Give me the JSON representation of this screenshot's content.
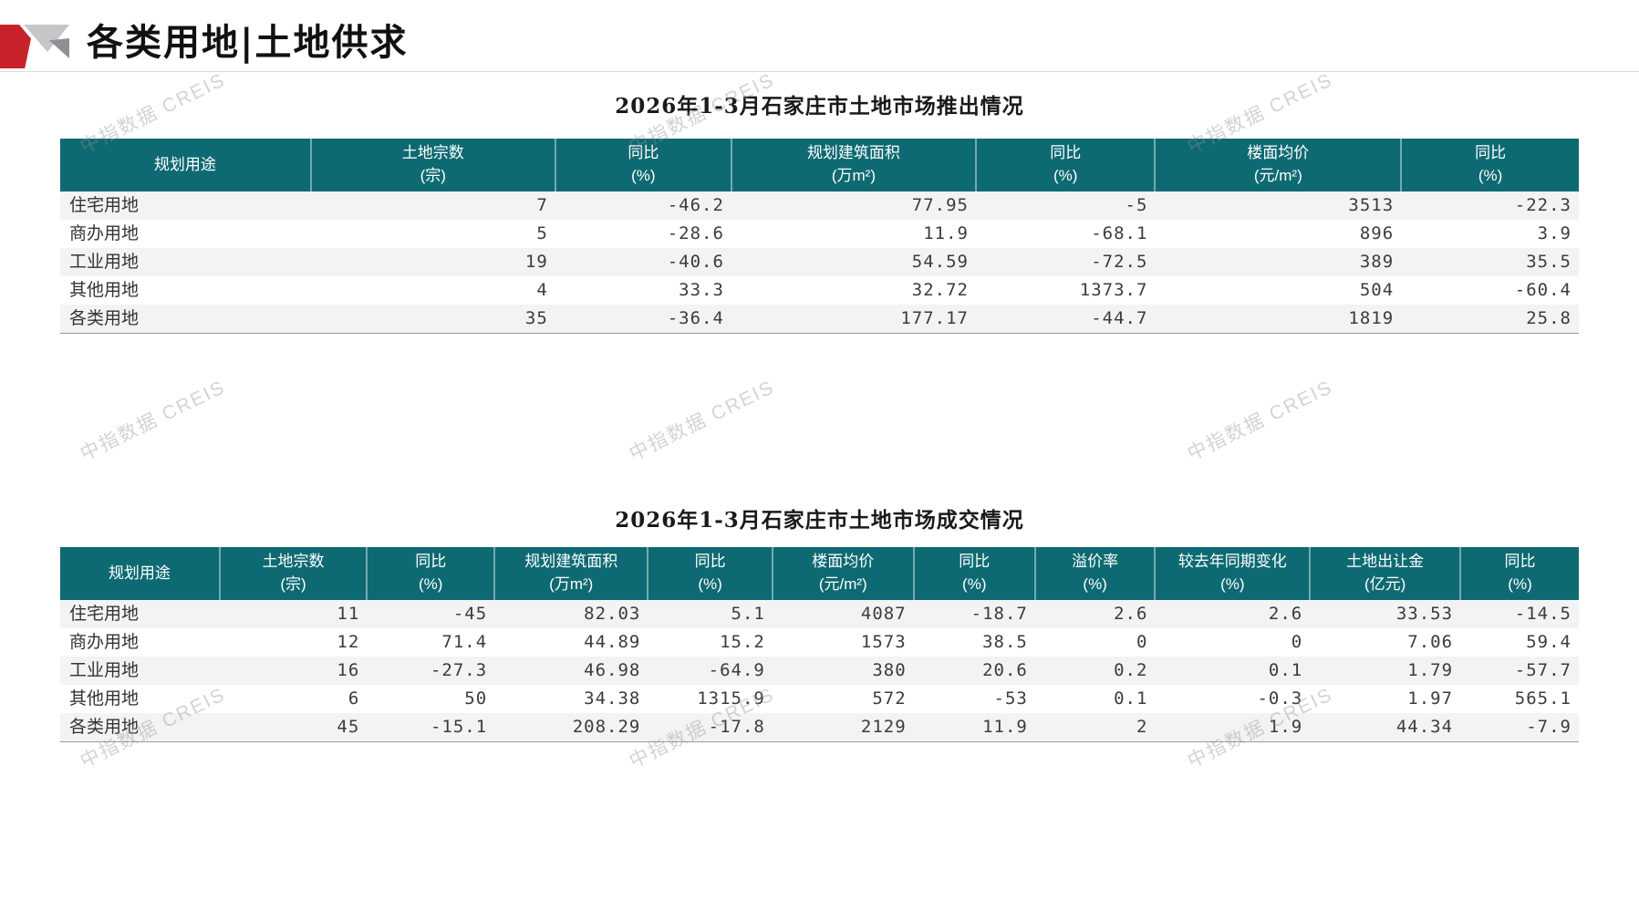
{
  "page": {
    "title": "各类用地|土地供求",
    "watermark": "中指数据 CREIS"
  },
  "colors": {
    "header_bg": "#0e6a72",
    "accent_red": "#c8232b",
    "stripe": "#f3f3f5"
  },
  "table1": {
    "title": "2026年1-3月石家庄市土地市场推出情况",
    "columns": [
      {
        "label": "规划用途",
        "unit": ""
      },
      {
        "label": "土地宗数",
        "unit": "(宗)"
      },
      {
        "label": "同比",
        "unit": "(%)"
      },
      {
        "label": "规划建筑面积",
        "unit": "(万m²)"
      },
      {
        "label": "同比",
        "unit": "(%)"
      },
      {
        "label": "楼面均价",
        "unit": "(元/m²)"
      },
      {
        "label": "同比",
        "unit": "(%)"
      }
    ],
    "rows": [
      [
        "住宅用地",
        "7",
        "-46.2",
        "77.95",
        "-5",
        "3513",
        "-22.3"
      ],
      [
        "商办用地",
        "5",
        "-28.6",
        "11.9",
        "-68.1",
        "896",
        "3.9"
      ],
      [
        "工业用地",
        "19",
        "-40.6",
        "54.59",
        "-72.5",
        "389",
        "35.5"
      ],
      [
        "其他用地",
        "4",
        "33.3",
        "32.72",
        "1373.7",
        "504",
        "-60.4"
      ],
      [
        "各类用地",
        "35",
        "-36.4",
        "177.17",
        "-44.7",
        "1819",
        "25.8"
      ]
    ]
  },
  "table2": {
    "title": "2026年1-3月石家庄市土地市场成交情况",
    "columns": [
      {
        "label": "规划用途",
        "unit": ""
      },
      {
        "label": "土地宗数",
        "unit": "(宗)"
      },
      {
        "label": "同比",
        "unit": "(%)"
      },
      {
        "label": "规划建筑面积",
        "unit": "(万m²)"
      },
      {
        "label": "同比",
        "unit": "(%)"
      },
      {
        "label": "楼面均价",
        "unit": "(元/m²)"
      },
      {
        "label": "同比",
        "unit": "(%)"
      },
      {
        "label": "溢价率",
        "unit": "(%)"
      },
      {
        "label": "较去年同期变化",
        "unit": "(%)"
      },
      {
        "label": "土地出让金",
        "unit": "(亿元)"
      },
      {
        "label": "同比",
        "unit": "(%)"
      }
    ],
    "rows": [
      [
        "住宅用地",
        "11",
        "-45",
        "82.03",
        "5.1",
        "4087",
        "-18.7",
        "2.6",
        "2.6",
        "33.53",
        "-14.5"
      ],
      [
        "商办用地",
        "12",
        "71.4",
        "44.89",
        "15.2",
        "1573",
        "38.5",
        "0",
        "0",
        "7.06",
        "59.4"
      ],
      [
        "工业用地",
        "16",
        "-27.3",
        "46.98",
        "-64.9",
        "380",
        "20.6",
        "0.2",
        "0.1",
        "1.79",
        "-57.7"
      ],
      [
        "其他用地",
        "6",
        "50",
        "34.38",
        "1315.9",
        "572",
        "-53",
        "0.1",
        "-0.3",
        "1.97",
        "565.1"
      ],
      [
        "各类用地",
        "45",
        "-15.1",
        "208.29",
        "-17.8",
        "2129",
        "11.9",
        "2",
        "1.9",
        "44.34",
        "-7.9"
      ]
    ]
  }
}
